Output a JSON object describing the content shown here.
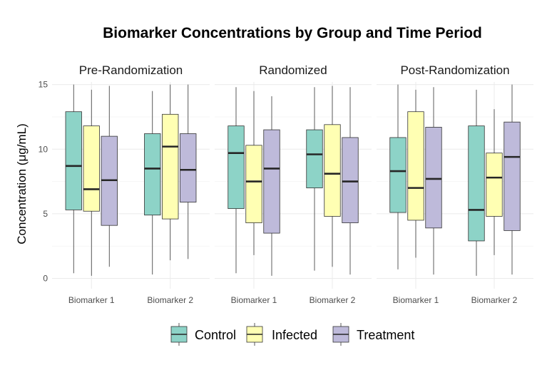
{
  "chart_data": {
    "type": "boxplot",
    "title": "Biomarker Concentrations by Group and Time Period",
    "ylabel": "Concentration (μg/mL)",
    "xlabel": "",
    "ylim": [
      -0.8,
      15.2
    ],
    "yticks": [
      0,
      5,
      10,
      15
    ],
    "grid": true,
    "legend_position": "bottom",
    "categories": [
      "Biomarker 1",
      "Biomarker 2"
    ],
    "groups": [
      {
        "name": "Control",
        "color": "#8dd3c7"
      },
      {
        "name": "Infected",
        "color": "#ffffb3"
      },
      {
        "name": "Treatment",
        "color": "#bebada"
      }
    ],
    "panels": [
      {
        "label": "Pre-Randomization",
        "boxes": [
          [
            {
              "min": 0.4,
              "q1": 5.3,
              "median": 8.7,
              "q3": 12.9,
              "max": 15.0
            },
            {
              "min": 0.2,
              "q1": 5.2,
              "median": 6.9,
              "q3": 11.8,
              "max": 14.6
            },
            {
              "min": 0.9,
              "q1": 4.1,
              "median": 7.6,
              "q3": 11.0,
              "max": 14.9
            }
          ],
          [
            {
              "min": 0.3,
              "q1": 4.9,
              "median": 8.5,
              "q3": 11.2,
              "max": 14.5
            },
            {
              "min": 1.4,
              "q1": 4.6,
              "median": 10.2,
              "q3": 12.7,
              "max": 15.0
            },
            {
              "min": 1.5,
              "q1": 5.9,
              "median": 8.4,
              "q3": 11.2,
              "max": 15.0
            }
          ]
        ]
      },
      {
        "label": "Randomized",
        "boxes": [
          [
            {
              "min": 0.4,
              "q1": 5.4,
              "median": 9.7,
              "q3": 11.8,
              "max": 14.8
            },
            {
              "min": 1.8,
              "q1": 4.3,
              "median": 7.5,
              "q3": 10.3,
              "max": 14.5
            },
            {
              "min": 0.2,
              "q1": 3.5,
              "median": 8.5,
              "q3": 11.5,
              "max": 14.1
            }
          ],
          [
            {
              "min": 0.6,
              "q1": 7.0,
              "median": 9.6,
              "q3": 11.5,
              "max": 14.8
            },
            {
              "min": 0.9,
              "q1": 4.8,
              "median": 8.1,
              "q3": 11.9,
              "max": 14.9
            },
            {
              "min": 0.3,
              "q1": 4.3,
              "median": 7.5,
              "q3": 10.9,
              "max": 14.8
            }
          ]
        ]
      },
      {
        "label": "Post-Randomization",
        "boxes": [
          [
            {
              "min": 0.7,
              "q1": 5.1,
              "median": 8.3,
              "q3": 10.9,
              "max": 15.0
            },
            {
              "min": 1.6,
              "q1": 4.5,
              "median": 7.0,
              "q3": 12.9,
              "max": 14.6
            },
            {
              "min": 0.3,
              "q1": 3.9,
              "median": 7.7,
              "q3": 11.7,
              "max": 14.8
            }
          ],
          [
            {
              "min": 0.2,
              "q1": 2.9,
              "median": 5.3,
              "q3": 11.8,
              "max": 14.6
            },
            {
              "min": 1.8,
              "q1": 4.8,
              "median": 7.8,
              "q3": 9.7,
              "max": 13.1
            },
            {
              "min": 0.3,
              "q1": 3.7,
              "median": 9.4,
              "q3": 12.1,
              "max": 15.0
            }
          ]
        ]
      }
    ]
  }
}
